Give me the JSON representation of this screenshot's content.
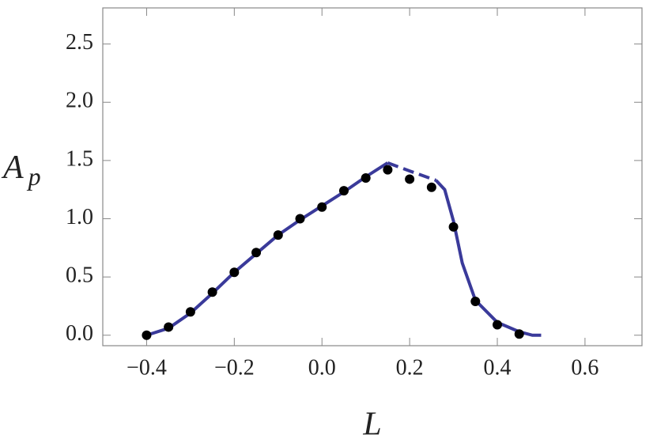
{
  "chart_data": {
    "type": "line",
    "x_label": "L",
    "y_label": "A",
    "y_label_subscript": "p",
    "xlim": [
      -0.5,
      0.73
    ],
    "ylim": [
      -0.09,
      2.81
    ],
    "xticks": [
      {
        "value": -0.4,
        "label": "−0.4"
      },
      {
        "value": -0.2,
        "label": "−0.2"
      },
      {
        "value": 0,
        "label": "0.0"
      },
      0.2,
      0.4,
      0.6
    ],
    "yticks": [
      {
        "value": 0,
        "label": "0.0"
      },
      0.5,
      {
        "value": 1,
        "label": "1.0"
      },
      1.5,
      {
        "value": 2,
        "label": "2.0"
      },
      2.5
    ],
    "series": [
      {
        "color": "#3a3a9a",
        "dashed": false,
        "x": [
          -0.4,
          -0.35,
          -0.3,
          -0.25,
          -0.2,
          -0.15,
          -0.1,
          -0.05,
          0,
          0.05,
          0.1,
          0.15
        ],
        "values": [
          0,
          0.06,
          0.19,
          0.36,
          0.54,
          0.7,
          0.86,
          0.99,
          1.11,
          1.23,
          1.36,
          1.48
        ]
      },
      {
        "color": "#3a3a9a",
        "dashed": true,
        "x": [
          0.15,
          0.2,
          0.26
        ],
        "values": [
          1.48,
          1.41,
          1.33
        ]
      },
      {
        "color": "#3a3a9a",
        "dashed": false,
        "x": [
          0.26,
          0.28,
          0.3,
          0.32,
          0.35,
          0.4,
          0.45,
          0.48,
          0.5
        ],
        "values": [
          1.33,
          1.25,
          0.98,
          0.62,
          0.3,
          0.11,
          0.03,
          0,
          0
        ]
      }
    ],
    "points": {
      "color": "#000000",
      "x": [
        -0.4,
        -0.35,
        -0.3,
        -0.25,
        -0.2,
        -0.15,
        -0.1,
        -0.05,
        0,
        0.05,
        0.1,
        0.15,
        0.2,
        0.25,
        0.3,
        0.35,
        0.4,
        0.45
      ],
      "values": [
        0,
        0.07,
        0.2,
        0.37,
        0.54,
        0.71,
        0.86,
        1.0,
        1.1,
        1.24,
        1.35,
        1.42,
        1.34,
        1.27,
        0.93,
        0.29,
        0.09,
        0.01
      ]
    }
  }
}
